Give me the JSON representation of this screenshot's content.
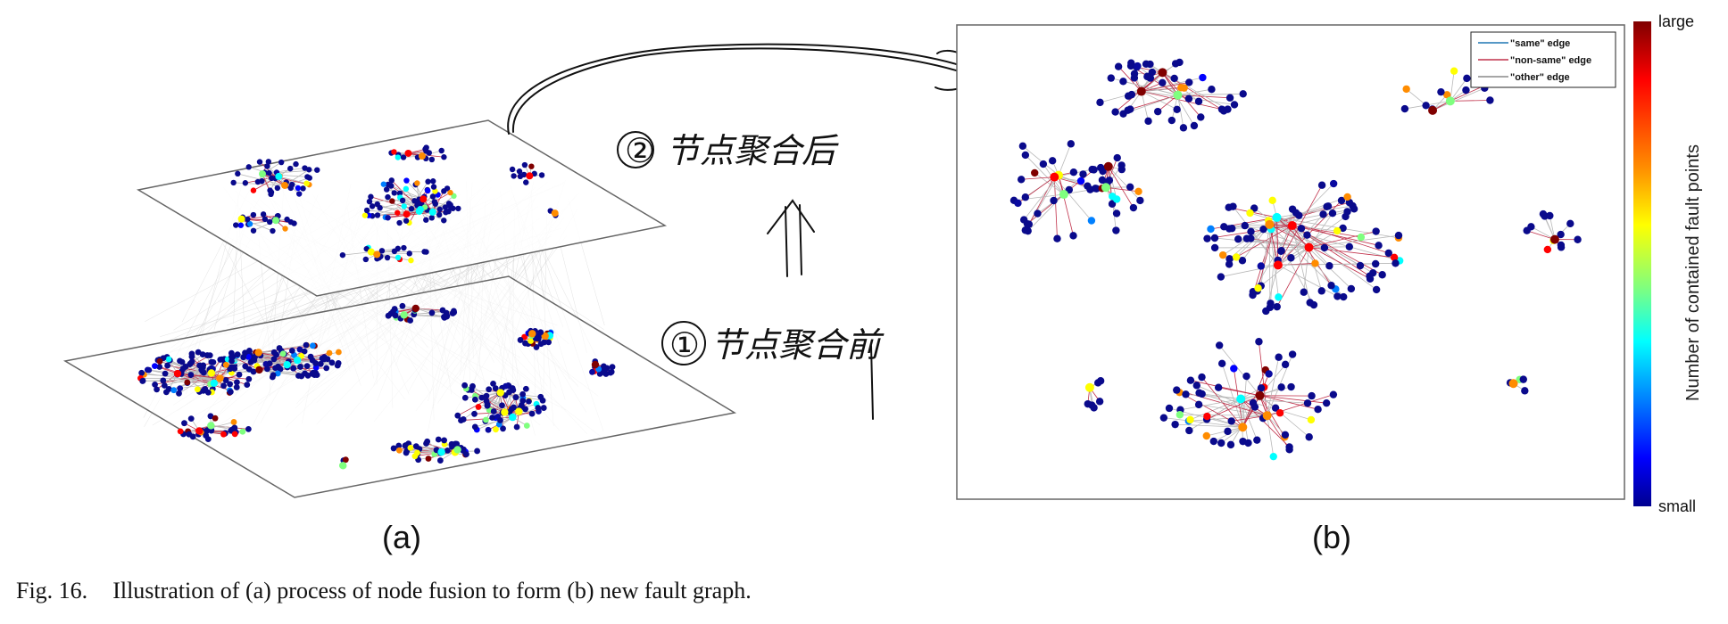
{
  "figure": {
    "label_a": "(a)",
    "label_b": "(b)",
    "caption_number": "Fig. 16.",
    "caption_text": "Illustration of (a) process of node fusion to form (b) new fault graph."
  },
  "colorbar": {
    "title": "Number of contained fault points",
    "top_label": "large",
    "bottom_label": "small",
    "colors": [
      "#800000",
      "#ff0000",
      "#ff8c00",
      "#ffff00",
      "#7fff7f",
      "#00ffff",
      "#0080ff",
      "#0000ff",
      "#00008f"
    ]
  },
  "legend": {
    "items": [
      {
        "label": "\"same\" edge",
        "color": "#1f77b4"
      },
      {
        "label": "\"non-same\" edge",
        "color": "#c0304a"
      },
      {
        "label": "\"other\" edge",
        "color": "#888888"
      }
    ]
  },
  "annotation": {
    "handwriting_top": "② 节点聚合后",
    "handwriting_bottom": "① 节点聚合前",
    "ink_color": "#111111"
  },
  "colors": {
    "node_dark": "#0a0a8c",
    "edge_gray": "#b8b8b8",
    "edge_red": "#c0304a",
    "frame": "#666666"
  }
}
